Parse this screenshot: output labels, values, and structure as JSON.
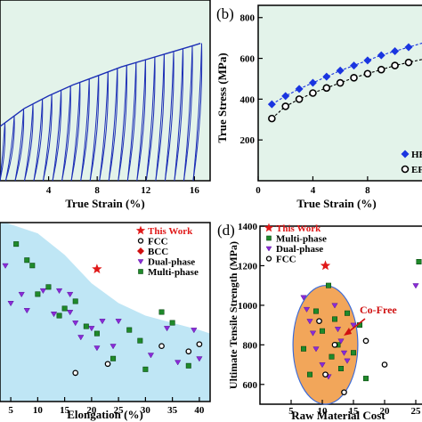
{
  "colors": {
    "panel_a_bg": "#e3f3ea",
    "panel_a_curve": "#1c2fb5",
    "panel_b_bg": "#e3f3ea",
    "hp_series": "#1a35e0",
    "ef_series": "#000000",
    "panel_c_shade": "#bfe6f5",
    "star": "#e01818",
    "fcc": "#000000",
    "bcc": "#d01010",
    "dual_phase": "#8a2ad8",
    "multi_phase": "#1f8a2a",
    "ellipse": "#f2a65a"
  },
  "chart_data": [
    {
      "panel": "a",
      "type": "line",
      "title": "",
      "xlabel": "True Strain (%)",
      "ylabel": "",
      "xlim": [
        0,
        17
      ],
      "x_ticks": [
        "4",
        "8",
        "12",
        "16"
      ],
      "envelope": {
        "x": [
          0,
          2,
          4,
          6,
          8,
          10,
          12,
          14,
          16,
          16.5
        ],
        "y": [
          0.3,
          0.4,
          0.47,
          0.53,
          0.58,
          0.63,
          0.67,
          0.71,
          0.75,
          0.76
        ]
      },
      "cycles": 22
    },
    {
      "panel": "b",
      "label": "(b)",
      "type": "line",
      "xlabel": "True Strain (%)",
      "ylabel": "True Stress (MPa)",
      "xlim": [
        0,
        12.5
      ],
      "ylim": [
        0,
        860
      ],
      "x_ticks": [
        "0",
        "4",
        "8"
      ],
      "y_ticks": [
        "200",
        "400",
        "600",
        "800"
      ],
      "series": [
        {
          "name": "HP",
          "marker": "diamond",
          "x": [
            1,
            2,
            3,
            4,
            5,
            6,
            7,
            8,
            9,
            10,
            11,
            12
          ],
          "y": [
            375,
            415,
            450,
            480,
            510,
            540,
            565,
            590,
            615,
            635,
            655,
            675
          ]
        },
        {
          "name": "EF",
          "marker": "circle-open",
          "x": [
            1,
            2,
            3,
            4,
            5,
            6,
            7,
            8,
            9,
            10,
            11,
            12
          ],
          "y": [
            305,
            365,
            400,
            430,
            455,
            480,
            505,
            525,
            545,
            565,
            580,
            595
          ]
        }
      ],
      "legend_visible": [
        "HP",
        "EF"
      ]
    },
    {
      "panel": "c",
      "type": "scatter",
      "xlabel": "Elongation (%)",
      "ylabel": "",
      "xlim": [
        3,
        42
      ],
      "ylim": [
        0,
        100
      ],
      "x_ticks": [
        "5",
        "10",
        "15",
        "20",
        "25",
        "30",
        "35",
        "40"
      ],
      "legend": [
        "This Work",
        "FCC",
        "BCC",
        "Dual-phase",
        "Multi-phase"
      ],
      "series": [
        {
          "name": "This Work",
          "marker": "star",
          "x": [
            21
          ],
          "y": [
            74
          ]
        },
        {
          "name": "FCC",
          "marker": "circle",
          "x": [
            17,
            23,
            33,
            38,
            40
          ],
          "y": [
            16,
            21,
            31,
            28,
            32
          ]
        },
        {
          "name": "BCC",
          "marker": "diamond",
          "x": [],
          "y": []
        },
        {
          "name": "Dual-phase",
          "marker": "triangle-down",
          "x": [
            4,
            5,
            7,
            8,
            11,
            13,
            14,
            16,
            16,
            17,
            18,
            20,
            21,
            22,
            24,
            25,
            31,
            34,
            36,
            39,
            40
          ],
          "y": [
            76,
            55,
            60,
            51,
            62,
            49,
            62,
            60,
            50,
            44,
            36,
            41,
            30,
            45,
            31,
            45,
            26,
            41,
            22,
            40,
            24
          ]
        },
        {
          "name": "Multi-phase",
          "marker": "square",
          "x": [
            6,
            8,
            9,
            10,
            12,
            14,
            15,
            17,
            19,
            21,
            24,
            27,
            29,
            30,
            33,
            35,
            38
          ],
          "y": [
            88,
            79,
            76,
            60,
            64,
            48,
            52,
            56,
            42,
            38,
            24,
            40,
            34,
            18,
            50,
            44,
            20
          ]
        }
      ],
      "shade_boundary": {
        "x": [
          4,
          10,
          15,
          20,
          25,
          30,
          35,
          40,
          42
        ],
        "y": [
          100,
          94,
          82,
          66,
          55,
          48,
          44,
          40,
          38
        ]
      }
    },
    {
      "panel": "d",
      "label": "(d)",
      "type": "scatter",
      "xlabel": "Raw Material Cost",
      "ylabel": "Ultimate Tensile Strength (MPa)",
      "xlim": [
        0,
        26
      ],
      "ylim": [
        500,
        1400
      ],
      "y_ticks": [
        "600",
        "800",
        "1000",
        "1200",
        "1400"
      ],
      "x_ticks": [
        "5",
        "10",
        "15",
        "20",
        "25"
      ],
      "legend": [
        "This Work",
        "Multi-phase",
        "Dual-phase",
        "FCC"
      ],
      "annotation": "Co-Free",
      "series": [
        {
          "name": "This Work",
          "marker": "star",
          "x": [
            10.5
          ],
          "y": [
            1200
          ]
        },
        {
          "name": "Multi-phase",
          "marker": "square",
          "x": [
            7,
            8,
            9,
            10,
            11,
            11.5,
            12,
            12.5,
            13,
            14,
            15,
            16,
            17,
            25.5
          ],
          "y": [
            780,
            650,
            970,
            870,
            1100,
            740,
            930,
            800,
            680,
            960,
            760,
            900,
            630,
            1220
          ]
        },
        {
          "name": "Dual-phase",
          "marker": "triangle-down",
          "x": [
            7,
            7.5,
            8,
            8.5,
            9,
            10,
            11,
            12,
            12.5,
            13,
            13.5,
            14,
            15,
            25
          ],
          "y": [
            1040,
            980,
            920,
            860,
            780,
            700,
            640,
            1000,
            880,
            820,
            760,
            720,
            900,
            1100
          ]
        },
        {
          "name": "FCC",
          "marker": "circle",
          "x": [
            9.5,
            10.5,
            12,
            13.5,
            17,
            20
          ],
          "y": [
            920,
            650,
            800,
            560,
            820,
            700
          ]
        }
      ],
      "ellipse": {
        "cx": 10.5,
        "cy": 800,
        "rx": 5.2,
        "ry": 300
      }
    }
  ]
}
